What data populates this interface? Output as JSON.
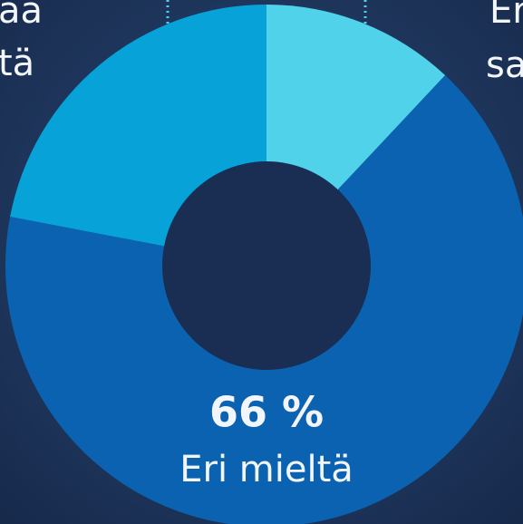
{
  "chart_data": {
    "type": "donut",
    "categories": [
      null,
      "Eri mieltä",
      null
    ],
    "values": [
      12,
      66,
      22
    ],
    "value_labels": [
      null,
      "66 %",
      null
    ],
    "colors": [
      "#4fd2ea",
      "#0a62b0",
      "#07a3d8"
    ],
    "annotations": [
      "aa",
      "tä",
      "Er",
      "sa"
    ]
  }
}
